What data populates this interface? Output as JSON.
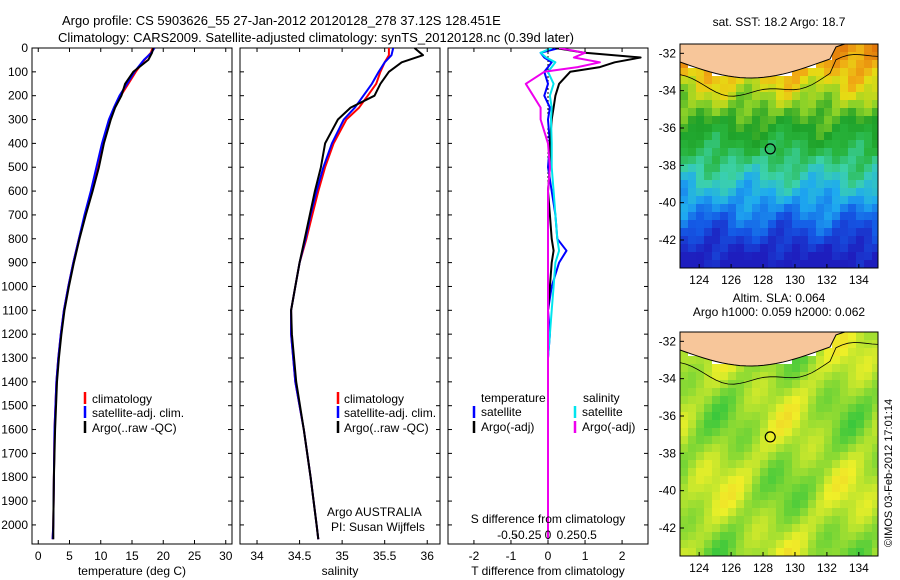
{
  "titles": {
    "line1": "Argo profile: CS 5903626_55 27-Jan-2012 20120128_278 37.12S 128.451E",
    "line2": "Climatology: CARS2009. Satellite-adjusted climatology: synTS_20120128.nc (0.39d later)"
  },
  "colors": {
    "climatology": "#ff0000",
    "satellite": "#0000ff",
    "argo": "#000000",
    "sat_salinity": "#00e5ee",
    "argo_salinity": "#ee00ee",
    "land": "#f7c69a"
  },
  "chart_data": [
    {
      "id": "temperature",
      "type": "line",
      "xlabel": "temperature (deg C)",
      "ylabel": "",
      "xlim": [
        -1,
        31
      ],
      "ylim": [
        2080,
        0
      ],
      "xticks": [
        0,
        5,
        10,
        15,
        20,
        25,
        30
      ],
      "yticks": [
        0,
        100,
        200,
        300,
        400,
        500,
        600,
        700,
        800,
        900,
        1000,
        1100,
        1200,
        1300,
        1400,
        1500,
        1600,
        1700,
        1800,
        1900,
        2000
      ],
      "legend": [
        "climatology",
        "satellite-adj. clim.",
        "Argo(..raw -QC)"
      ],
      "depth": [
        0,
        20,
        50,
        100,
        150,
        200,
        250,
        300,
        400,
        500,
        600,
        700,
        800,
        900,
        1000,
        1100,
        1200,
        1300,
        1400,
        1600,
        1800,
        2000,
        2060
      ],
      "series": [
        {
          "name": "climatology",
          "color": "red",
          "values": [
            18.3,
            18.0,
            17.0,
            15.6,
            14.4,
            13.2,
            12.2,
            11.4,
            10.3,
            9.4,
            8.5,
            7.5,
            6.5,
            5.6,
            4.8,
            4.1,
            3.6,
            3.2,
            2.9,
            2.6,
            2.5,
            2.4,
            2.3
          ]
        },
        {
          "name": "satellite-adj. clim.",
          "color": "blue",
          "values": [
            18.6,
            18.1,
            16.9,
            15.4,
            14.2,
            13.0,
            12.1,
            11.3,
            10.2,
            9.3,
            8.4,
            7.4,
            6.5,
            5.6,
            4.8,
            4.1,
            3.6,
            3.2,
            2.9,
            2.6,
            2.5,
            2.4,
            2.3
          ]
        },
        {
          "name": "Argo(..raw -QC)",
          "color": "black",
          "values": [
            18.4,
            18.2,
            17.6,
            15.2,
            13.9,
            13.3,
            12.3,
            11.6,
            10.5,
            9.7,
            8.7,
            7.6,
            6.6,
            5.7,
            4.9,
            4.2,
            3.7,
            3.3,
            3.0,
            2.7,
            2.5,
            2.4,
            2.4
          ]
        }
      ]
    },
    {
      "id": "salinity",
      "type": "line",
      "xlabel": "salinity",
      "ylabel": "",
      "xlim": [
        33.8,
        36.15
      ],
      "ylim": [
        2080,
        0
      ],
      "xticks": [
        34,
        34.5,
        35,
        35.5,
        36
      ],
      "legend": [
        "climatology",
        "satellite-adj. clim.",
        "Argo(..raw -QC)"
      ],
      "annotation": [
        "Argo AUSTRALIA",
        "PI: Susan Wijffels"
      ],
      "depth": [
        0,
        30,
        60,
        100,
        150,
        200,
        250,
        300,
        400,
        500,
        600,
        700,
        800,
        900,
        1000,
        1100,
        1200,
        1400,
        1600,
        1800,
        2000,
        2060
      ],
      "series": [
        {
          "name": "climatology",
          "color": "red",
          "values": [
            35.55,
            35.55,
            35.5,
            35.45,
            35.4,
            35.3,
            35.2,
            35.05,
            34.9,
            34.8,
            34.72,
            34.65,
            34.58,
            34.5,
            34.45,
            34.4,
            34.4,
            34.45,
            34.55,
            34.63,
            34.7,
            34.72
          ]
        },
        {
          "name": "satellite-adj. clim.",
          "color": "blue",
          "values": [
            35.6,
            35.58,
            35.5,
            35.43,
            35.35,
            35.25,
            35.15,
            35.02,
            34.88,
            34.78,
            34.7,
            34.63,
            34.57,
            34.5,
            34.45,
            34.4,
            34.4,
            34.45,
            34.55,
            34.63,
            34.7,
            34.72
          ]
        },
        {
          "name": "Argo(..raw -QC)",
          "color": "black",
          "values": [
            35.85,
            35.95,
            35.7,
            35.55,
            35.45,
            35.38,
            35.1,
            34.95,
            34.8,
            34.75,
            34.68,
            34.62,
            34.56,
            34.5,
            34.45,
            34.4,
            34.41,
            34.46,
            34.55,
            34.63,
            34.7,
            34.72
          ]
        }
      ]
    },
    {
      "id": "difference",
      "type": "line",
      "xlabel": "T difference from climatology",
      "xlabel_top": "S difference from climatology",
      "xlim": [
        -2.7,
        2.7
      ],
      "ylim": [
        2080,
        0
      ],
      "xticks": [
        -2,
        -1,
        0,
        1,
        2
      ],
      "sticks": [
        -0.5,
        -0.25,
        0,
        0.25,
        0.5
      ],
      "legend_headers": [
        "temperature",
        "salinity"
      ],
      "legend": [
        "satellite",
        "Argo(-adj)",
        "satellite",
        "Argo(-adj)"
      ],
      "depth": [
        0,
        20,
        40,
        60,
        80,
        100,
        150,
        200,
        250,
        300,
        400,
        500,
        600,
        700,
        800,
        850,
        900,
        1000,
        1100,
        1200,
        1300,
        1500,
        1800,
        2000,
        2060
      ],
      "series": [
        {
          "name": "temperature satellite",
          "color": "blue",
          "values": [
            0.3,
            -0.2,
            -0.1,
            0.1,
            0.0,
            -0.1,
            0.0,
            -0.1,
            0.05,
            0.0,
            0.05,
            0.0,
            0.1,
            0.2,
            0.25,
            0.5,
            0.3,
            0.1,
            0.0,
            0.05,
            0.0,
            0.0,
            0.0,
            0.0,
            0.0
          ]
        },
        {
          "name": "temperature Argo(-adj)",
          "color": "black",
          "values": [
            0.2,
            1.0,
            2.5,
            1.8,
            1.4,
            0.6,
            0.3,
            0.2,
            0.15,
            0.1,
            0.05,
            0.05,
            0.0,
            0.05,
            0.1,
            0.15,
            0.1,
            0.05,
            0.0,
            0.0,
            0.0,
            0.0,
            0.0,
            0.0,
            0.0
          ]
        },
        {
          "name": "salinity satellite",
          "color": "cyan",
          "values": [
            0.1,
            -0.2,
            -0.05,
            0.2,
            0.1,
            0.0,
            0.15,
            0.05,
            0.1,
            0.08,
            0.1,
            0.1,
            0.15,
            0.2,
            0.25,
            0.3,
            0.2,
            0.15,
            0.1,
            0.05,
            0.0,
            0.0,
            0.0,
            0.0,
            0.0
          ]
        },
        {
          "name": "salinity Argo(-adj)",
          "color": "magenta",
          "values": [
            0.3,
            1.0,
            0.7,
            1.4,
            0.8,
            -0.1,
            -0.6,
            -0.4,
            -0.2,
            -0.2,
            0.0,
            0.05,
            0.0,
            0.0,
            0.0,
            0.0,
            0.0,
            0.0,
            0.0,
            0.0,
            0.0,
            0.0,
            0.0,
            0.0,
            0.0
          ]
        }
      ]
    },
    {
      "id": "sst-map",
      "type": "heatmap",
      "title": "sat. SST: 18.2  Argo: 18.7",
      "xticks": [
        124,
        126,
        128,
        130,
        132,
        134
      ],
      "yticks": [
        -32,
        -34,
        -36,
        -38,
        -40,
        -42
      ],
      "xlim": [
        122.8,
        135.2
      ],
      "ylim": [
        -43.5,
        -31.5
      ],
      "marker": {
        "lon": 128.451,
        "lat": -37.12
      }
    },
    {
      "id": "sla-map",
      "type": "heatmap",
      "title_line1": "Altim. SLA: 0.064",
      "title_line2": "Argo h1000: 0.059  h2000: 0.062",
      "xticks": [
        124,
        126,
        128,
        130,
        132,
        134
      ],
      "yticks": [
        -32,
        -34,
        -36,
        -38,
        -40,
        -42
      ],
      "xlim": [
        122.8,
        135.2
      ],
      "ylim": [
        -43.5,
        -31.5
      ],
      "marker": {
        "lon": 128.451,
        "lat": -37.12
      }
    }
  ],
  "footer": {
    "stamp": "©IMOS 03-Feb-2012 17:01:14"
  }
}
